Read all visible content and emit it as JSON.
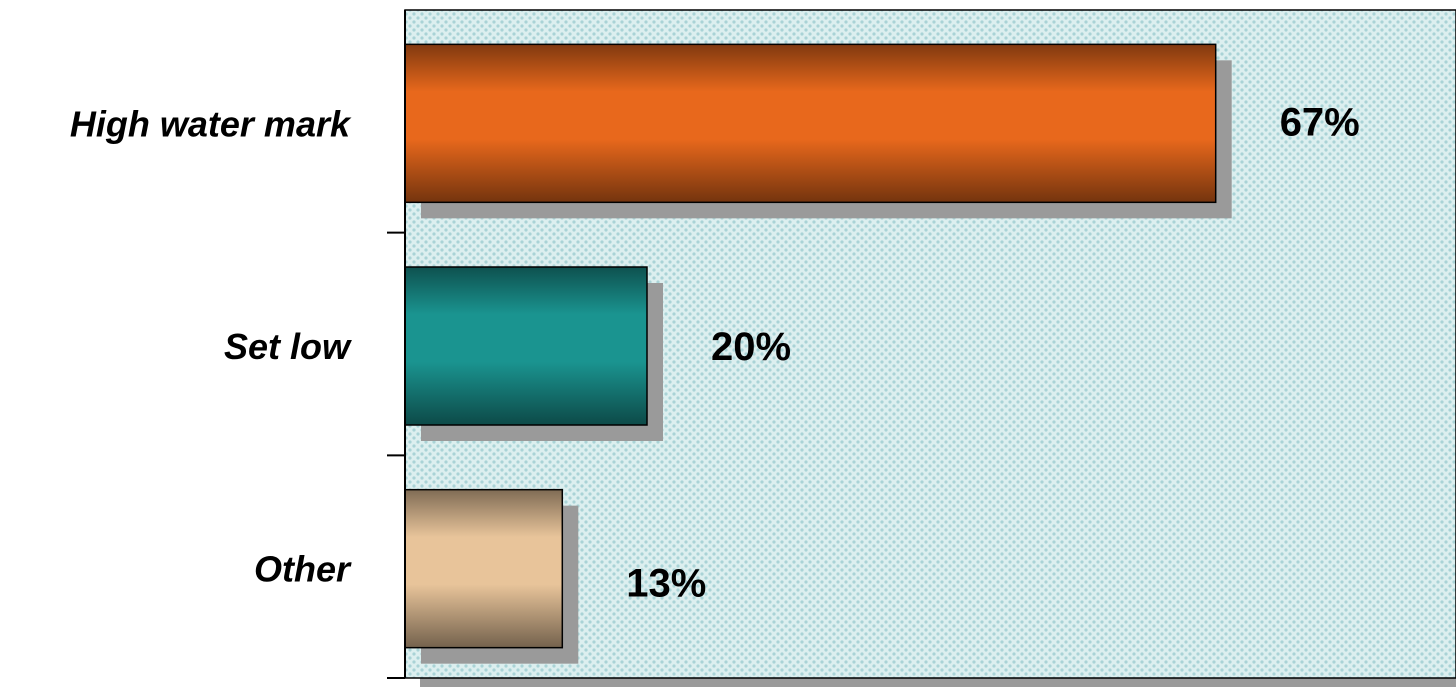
{
  "chart_data": {
    "type": "bar",
    "orientation": "horizontal",
    "title": "",
    "xlabel": "",
    "ylabel": "",
    "categories": [
      "High water mark",
      "Set low",
      "Other"
    ],
    "values": [
      67,
      20,
      13
    ],
    "value_labels": [
      "67%",
      "20%",
      "13%"
    ],
    "xlim": [
      0,
      100
    ],
    "grid": false,
    "legend": "none",
    "colors": [
      "#e8681c",
      "#1a9490",
      "#e8c49a"
    ],
    "plot_background": "#c8e6e6"
  }
}
